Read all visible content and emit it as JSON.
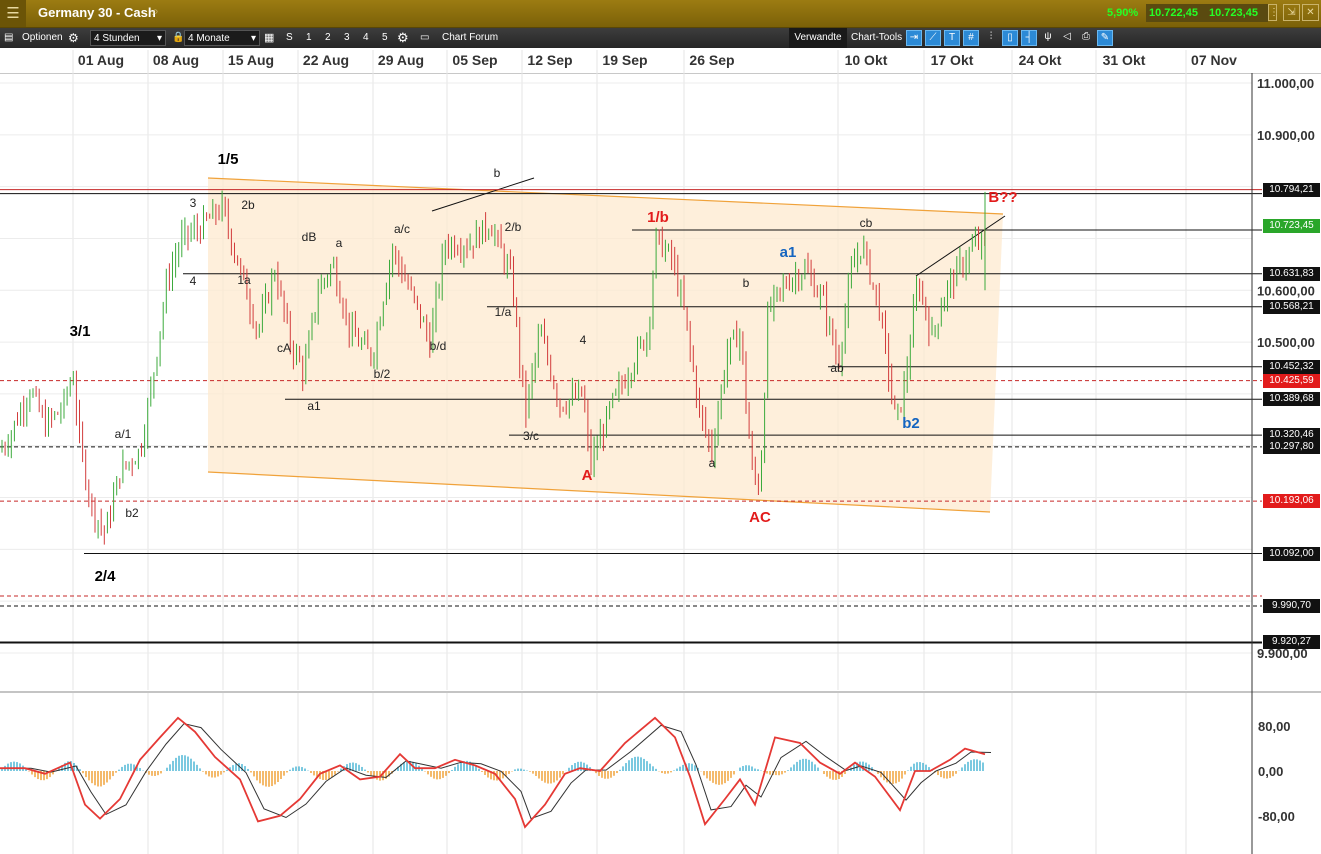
{
  "window": {
    "title": "Germany 30 - Cash",
    "change_pct": "5,90%",
    "bid": "10.722,45",
    "ask": "10.723,45",
    "colors": {
      "titlebar": "#8a6c0c",
      "quote_green": "#26ff26"
    }
  },
  "toolbar": {
    "options_label": "Optionen",
    "interval_value": "4 Stunden",
    "range_value": "4 Monate",
    "s_label": "S",
    "layout_buttons": [
      "1",
      "2",
      "3",
      "4",
      "5"
    ],
    "forum_label": "Chart Forum",
    "related_label": "Verwandte",
    "chart_tools_label": "Chart-Tools"
  },
  "date_axis": [
    "01 Aug",
    "08 Aug",
    "15 Aug",
    "22 Aug",
    "29 Aug",
    "05 Sep",
    "12 Sep",
    "19 Sep",
    "26 Sep",
    "10 Okt",
    "17 Okt",
    "24 Okt",
    "31 Okt",
    "07 Nov"
  ],
  "price_axis": [
    "11.000,00",
    "10.900,00",
    "10.600,00",
    "10.500,00",
    "9.900,00"
  ],
  "price_tags": [
    {
      "value": "10.794,21",
      "type": "dark"
    },
    {
      "value": "10.723,45",
      "type": "current"
    },
    {
      "value": "10.631,83",
      "type": "dark"
    },
    {
      "value": "10.568,21",
      "type": "dark"
    },
    {
      "value": "10.452,32",
      "type": "dark"
    },
    {
      "value": "10.425,59",
      "type": "red"
    },
    {
      "value": "10.389,68",
      "type": "dark"
    },
    {
      "value": "10.320,46",
      "type": "dark"
    },
    {
      "value": "10.297,80",
      "type": "dark"
    },
    {
      "value": "10.193,06",
      "type": "red"
    },
    {
      "value": "10.092,00",
      "type": "dark"
    },
    {
      "value": "9.990,70",
      "type": "dark"
    },
    {
      "value": "9.920,27",
      "type": "dark"
    }
  ],
  "wave_labels": [
    {
      "text": "1/5",
      "color": "#000000",
      "bold": true
    },
    {
      "text": "3/1",
      "color": "#000000",
      "bold": true
    },
    {
      "text": "2/4",
      "color": "#000000",
      "bold": true
    },
    {
      "text": "3",
      "color": "#222222",
      "bold": false
    },
    {
      "text": "2b",
      "color": "#222222",
      "bold": false
    },
    {
      "text": "4",
      "color": "#222222",
      "bold": false
    },
    {
      "text": "1a",
      "color": "#222222",
      "bold": false
    },
    {
      "text": "dB",
      "color": "#222222",
      "bold": false
    },
    {
      "text": "a",
      "color": "#222222",
      "bold": false
    },
    {
      "text": "cA",
      "color": "#222222",
      "bold": false
    },
    {
      "text": "a1",
      "color": "#222222",
      "bold": false
    },
    {
      "text": "a/c",
      "color": "#222222",
      "bold": false
    },
    {
      "text": "b/2",
      "color": "#222222",
      "bold": false
    },
    {
      "text": "b/d",
      "color": "#222222",
      "bold": false
    },
    {
      "text": "b",
      "color": "#222222",
      "bold": false
    },
    {
      "text": "2/b",
      "color": "#222222",
      "bold": false
    },
    {
      "text": "1/a",
      "color": "#222222",
      "bold": false
    },
    {
      "text": "3/c",
      "color": "#222222",
      "bold": false
    },
    {
      "text": "4",
      "color": "#222222",
      "bold": false
    },
    {
      "text": "a/1",
      "color": "#222222",
      "bold": false
    },
    {
      "text": "b2",
      "color": "#222222",
      "bold": false
    },
    {
      "text": "A",
      "color": "#e21b1b",
      "bold": true
    },
    {
      "text": "1/b",
      "color": "#e21b1b",
      "bold": true
    },
    {
      "text": "a",
      "color": "#222222",
      "bold": false
    },
    {
      "text": "b",
      "color": "#222222",
      "bold": false
    },
    {
      "text": "AC",
      "color": "#e21b1b",
      "bold": true
    },
    {
      "text": "a1",
      "color": "#1565c0",
      "bold": true
    },
    {
      "text": "cb",
      "color": "#222222",
      "bold": false
    },
    {
      "text": "ab",
      "color": "#222222",
      "bold": false
    },
    {
      "text": "b2",
      "color": "#1565c0",
      "bold": true
    },
    {
      "text": "B??",
      "color": "#e21b1b",
      "bold": true
    }
  ],
  "indicator": {
    "axis_labels": [
      "80,00",
      "0,00",
      "-80,00"
    ],
    "colors": {
      "line": "#e53935",
      "signal": "#333333",
      "hist_pos": "#4fb7d6",
      "hist_neg": "#f0a23a"
    }
  },
  "chart_data": {
    "type": "line",
    "x": [
      "01 Aug",
      "08 Aug",
      "15 Aug",
      "22 Aug",
      "29 Aug",
      "05 Sep",
      "12 Sep",
      "19 Sep",
      "26 Sep",
      "10 Okt",
      "17 Okt"
    ],
    "series": [
      {
        "values": [
          10360,
          10660,
          10720,
          10520,
          10660,
          10700,
          10360,
          10660,
          10230,
          10610,
          10723
        ]
      }
    ],
    "horizontal_levels": [
      10794.21,
      10631.83,
      10568.21,
      10452.32,
      10425.59,
      10389.68,
      10320.46,
      10297.8,
      10193.06,
      10092.0,
      9990.7,
      9920.27
    ],
    "ylim": [
      9880,
      11020
    ],
    "grid": true,
    "colors": {
      "up": "#3caa3c",
      "down": "#d23c3c",
      "channel_fill": "#fde9cf",
      "channel_line": "#f0a23a"
    }
  }
}
